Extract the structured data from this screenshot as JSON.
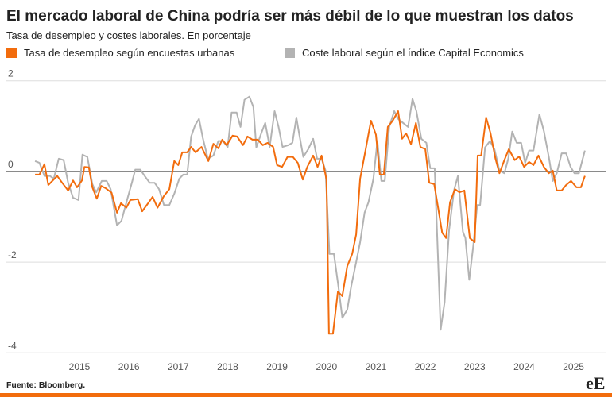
{
  "chart_data": {
    "type": "line",
    "title": "El mercado laboral de China podría ser más débil de lo que muestran los datos",
    "subtitle": "Tasa de desempleo y costes laborales. En porcentaje",
    "source": "Fuente: Bloomberg.",
    "logo": "eE",
    "xlim": [
      2013.52,
      2025.65
    ],
    "xticks": [
      2015,
      2016,
      2017,
      2018,
      2019,
      2020,
      2021,
      2022,
      2023,
      2024,
      2025
    ],
    "ylim": [
      -4.1,
      2.1
    ],
    "yticks": [
      -4,
      -2,
      0,
      2
    ],
    "grid": true,
    "series": [
      {
        "name": "Coste laboral según el índice Capital Economics",
        "color": "#b3b3b3",
        "x": [
          2014.1,
          2014.19,
          2014.29,
          2014.4,
          2014.48,
          2014.58,
          2014.68,
          2014.77,
          2014.87,
          2014.98,
          2015.06,
          2015.16,
          2015.26,
          2015.34,
          2015.45,
          2015.55,
          2015.63,
          2015.76,
          2015.85,
          2015.97,
          2016.06,
          2016.13,
          2016.23,
          2016.32,
          2016.42,
          2016.52,
          2016.61,
          2016.71,
          2016.82,
          2016.92,
          2017.02,
          2017.1,
          2017.18,
          2017.26,
          2017.34,
          2017.42,
          2017.5,
          2017.6,
          2017.71,
          2017.81,
          2017.9,
          2018.0,
          2018.08,
          2018.18,
          2018.26,
          2018.34,
          2018.44,
          2018.52,
          2018.58,
          2018.68,
          2018.76,
          2018.85,
          2018.95,
          2019.03,
          2019.11,
          2019.23,
          2019.31,
          2019.39,
          2019.45,
          2019.53,
          2019.63,
          2019.73,
          2019.81,
          2019.9,
          2019.98,
          2020.06,
          2020.15,
          2020.24,
          2020.32,
          2020.42,
          2020.5,
          2020.6,
          2020.68,
          2020.77,
          2020.85,
          2020.95,
          2021.03,
          2021.11,
          2021.18,
          2021.27,
          2021.37,
          2021.45,
          2021.55,
          2021.65,
          2021.74,
          2021.82,
          2021.92,
          2022.02,
          2022.1,
          2022.19,
          2022.31,
          2022.39,
          2022.48,
          2022.58,
          2022.66,
          2022.76,
          2022.81,
          2022.89,
          2022.97,
          2023.05,
          2023.11,
          2023.21,
          2023.31,
          2023.4,
          2023.5,
          2023.6,
          2023.68,
          2023.76,
          2023.85,
          2023.94,
          2024.02,
          2024.1,
          2024.19,
          2024.31,
          2024.4,
          2024.5,
          2024.58,
          2024.66,
          2024.76,
          2024.85,
          2024.94,
          2025.02,
          2025.11,
          2025.23
        ],
        "values": [
          0.23,
          0.19,
          -0.1,
          -0.1,
          -0.16,
          0.28,
          0.25,
          -0.25,
          -0.58,
          -0.63,
          0.37,
          0.32,
          -0.28,
          -0.46,
          -0.21,
          -0.21,
          -0.39,
          -1.19,
          -1.09,
          -0.6,
          -0.25,
          0.04,
          0.04,
          -0.1,
          -0.25,
          -0.25,
          -0.39,
          -0.74,
          -0.74,
          -0.49,
          -0.16,
          -0.07,
          -0.07,
          0.77,
          1.02,
          1.16,
          0.72,
          0.28,
          0.35,
          0.67,
          0.67,
          0.54,
          1.3,
          1.3,
          0.98,
          1.58,
          1.65,
          1.42,
          0.53,
          0.84,
          1.07,
          0.54,
          1.33,
          0.98,
          0.54,
          0.58,
          0.63,
          1.19,
          0.81,
          0.32,
          0.49,
          0.72,
          0.28,
          0.28,
          0.02,
          -1.82,
          -1.82,
          -2.53,
          -3.23,
          -3.05,
          -2.53,
          -2.0,
          -1.56,
          -0.91,
          -0.68,
          -0.16,
          0.67,
          -0.21,
          -0.21,
          0.98,
          1.33,
          1.16,
          1.07,
          0.98,
          1.6,
          1.33,
          0.72,
          0.63,
          0.07,
          0.07,
          -3.49,
          -2.88,
          -1.3,
          -0.42,
          -0.1,
          -1.33,
          -1.47,
          -2.39,
          -1.65,
          -0.74,
          -0.74,
          0.53,
          0.67,
          0.49,
          0.02,
          -0.04,
          0.28,
          0.88,
          0.63,
          0.63,
          0.19,
          0.46,
          0.46,
          1.26,
          0.89,
          0.32,
          -0.21,
          -0.04,
          0.4,
          0.4,
          0.1,
          -0.04,
          -0.04,
          0.46
        ]
      },
      {
        "name": "Tasa de desempleo según encuestas urbanas",
        "color": "#f26c0d",
        "x": [
          2014.1,
          2014.19,
          2014.29,
          2014.37,
          2014.55,
          2014.65,
          2014.77,
          2014.87,
          2014.95,
          2015.05,
          2015.1,
          2015.19,
          2015.26,
          2015.35,
          2015.44,
          2015.53,
          2015.65,
          2015.76,
          2015.84,
          2015.95,
          2016.03,
          2016.18,
          2016.27,
          2016.39,
          2016.48,
          2016.58,
          2016.71,
          2016.82,
          2016.92,
          2017.0,
          2017.08,
          2017.18,
          2017.26,
          2017.35,
          2017.47,
          2017.61,
          2017.71,
          2017.81,
          2017.89,
          2017.98,
          2018.1,
          2018.19,
          2018.31,
          2018.4,
          2018.5,
          2018.61,
          2018.71,
          2018.81,
          2018.92,
          2019.0,
          2019.1,
          2019.21,
          2019.32,
          2019.42,
          2019.52,
          2019.61,
          2019.73,
          2019.82,
          2019.9,
          2020.0,
          2020.05,
          2020.13,
          2020.23,
          2020.32,
          2020.42,
          2020.52,
          2020.6,
          2020.68,
          2020.79,
          2020.9,
          2021.0,
          2021.08,
          2021.16,
          2021.24,
          2021.34,
          2021.45,
          2021.53,
          2021.61,
          2021.71,
          2021.81,
          2021.9,
          2022.0,
          2022.08,
          2022.18,
          2022.26,
          2022.34,
          2022.42,
          2022.5,
          2022.6,
          2022.69,
          2022.79,
          2022.9,
          2023.0,
          2023.06,
          2023.13,
          2023.23,
          2023.32,
          2023.42,
          2023.5,
          2023.6,
          2023.69,
          2023.81,
          2023.9,
          2024.0,
          2024.1,
          2024.19,
          2024.29,
          2024.4,
          2024.5,
          2024.58,
          2024.66,
          2024.76,
          2024.85,
          2024.95,
          2025.06,
          2025.15,
          2025.23
        ],
        "values": [
          -0.07,
          -0.07,
          0.16,
          -0.3,
          -0.1,
          -0.25,
          -0.42,
          -0.2,
          -0.35,
          -0.2,
          0.1,
          0.09,
          -0.35,
          -0.6,
          -0.32,
          -0.37,
          -0.47,
          -0.91,
          -0.7,
          -0.8,
          -0.63,
          -0.61,
          -0.88,
          -0.7,
          -0.56,
          -0.8,
          -0.54,
          -0.39,
          0.23,
          0.14,
          0.42,
          0.42,
          0.54,
          0.42,
          0.54,
          0.23,
          0.61,
          0.51,
          0.7,
          0.58,
          0.79,
          0.77,
          0.58,
          0.77,
          0.7,
          0.7,
          0.58,
          0.63,
          0.54,
          0.14,
          0.1,
          0.32,
          0.32,
          0.19,
          -0.18,
          0.1,
          0.35,
          0.1,
          0.35,
          -0.18,
          -3.58,
          -3.58,
          -2.65,
          -2.75,
          -2.09,
          -1.82,
          -1.39,
          -0.16,
          0.47,
          1.12,
          0.81,
          -0.07,
          -0.07,
          0.98,
          1.12,
          1.33,
          0.72,
          0.84,
          0.6,
          1.07,
          0.54,
          0.49,
          -0.25,
          -0.28,
          -0.81,
          -1.35,
          -1.47,
          -0.68,
          -0.39,
          -0.46,
          -0.42,
          -1.47,
          -1.56,
          0.35,
          0.35,
          1.19,
          0.84,
          0.28,
          -0.04,
          0.25,
          0.49,
          0.25,
          0.33,
          0.1,
          0.21,
          0.14,
          0.35,
          0.1,
          -0.04,
          0.02,
          -0.42,
          -0.42,
          -0.3,
          -0.21,
          -0.35,
          -0.35,
          -0.1
        ]
      }
    ]
  }
}
